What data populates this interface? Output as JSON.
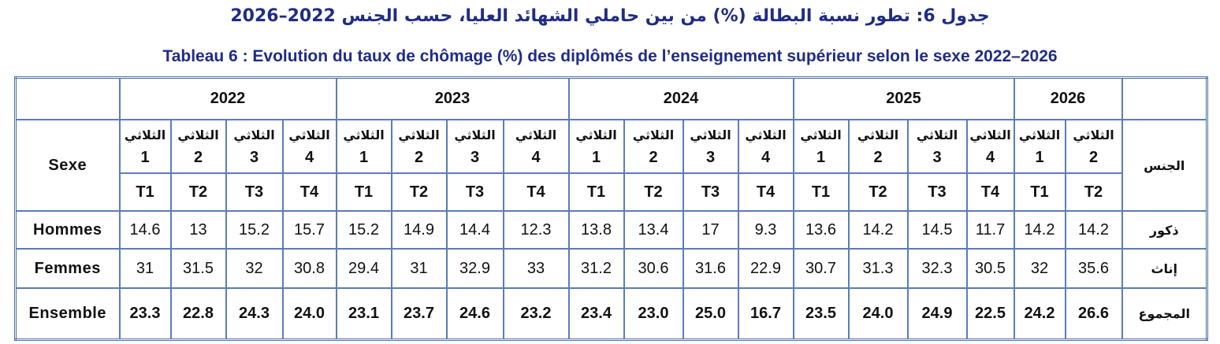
{
  "title_ar": "جدول 6: تطور نسبة البطالة (%) من بين حاملي الشهائد العليا، حسب الجنس 2022–2026",
  "title_fr": "Tableau 6 : Evolution du taux de chômage (%) des diplômés de l’enseignement supérieur selon le sexe 2022–2026",
  "table": {
    "header_fr": "Sexe",
    "header_ar": "الجنس",
    "years": [
      {
        "year": "2022",
        "quarters": [
          {
            "label": "الثلاثي",
            "num": "1",
            "code": "T1"
          },
          {
            "label": "الثلاثي",
            "num": "2",
            "code": "T2"
          },
          {
            "label": "الثلاثي",
            "num": "3",
            "code": "T3"
          },
          {
            "label": "الثلاثي",
            "num": "4",
            "code": "T4"
          }
        ]
      },
      {
        "year": "2023",
        "quarters": [
          {
            "label": "الثلاثي",
            "num": "1",
            "code": "T1"
          },
          {
            "label": "الثلاثي",
            "num": "2",
            "code": "T2"
          },
          {
            "label": "الثلاثي",
            "num": "3",
            "code": "T3"
          },
          {
            "label": "الثلاثي",
            "num": "4",
            "code": "T4"
          }
        ]
      },
      {
        "year": "2024",
        "quarters": [
          {
            "label": "الثلاثي",
            "num": "1",
            "code": "T1"
          },
          {
            "label": "الثلاثي",
            "num": "2",
            "code": "T2"
          },
          {
            "label": "الثلاثي",
            "num": "3",
            "code": "T3"
          },
          {
            "label": "الثلاثي",
            "num": "4",
            "code": "T4"
          }
        ]
      },
      {
        "year": "2025",
        "quarters": [
          {
            "label": "الثلاثي",
            "num": "1",
            "code": "T1"
          },
          {
            "label": "الثلاثي",
            "num": "2",
            "code": "T2"
          },
          {
            "label": "الثلاثي",
            "num": "3",
            "code": "T3"
          },
          {
            "label": "الثلاثي",
            "num": "4",
            "code": "T4"
          }
        ]
      },
      {
        "year": "2026",
        "quarters": [
          {
            "label": "الثلاثي",
            "num": "1",
            "code": "T1"
          },
          {
            "label": "الثلاثي",
            "num": "2",
            "code": "T2"
          }
        ]
      }
    ],
    "rows": [
      {
        "fr": "Hommes",
        "ar": "ذكور",
        "values": [
          "14.6",
          "13",
          "15.2",
          "15.7",
          "15.2",
          "14.9",
          "14.4",
          "12.3",
          "13.8",
          "13.4",
          "17",
          "9.3",
          "13.6",
          "14.2",
          "14.5",
          "11.7",
          "14.2",
          "14.2"
        ]
      },
      {
        "fr": "Femmes",
        "ar": "إناث",
        "values": [
          "31",
          "31.5",
          "32",
          "30.8",
          "29.4",
          "31",
          "32.9",
          "33",
          "31.2",
          "30.6",
          "31.6",
          "22.9",
          "30.7",
          "31.3",
          "32.3",
          "30.5",
          "32",
          "35.6"
        ]
      },
      {
        "fr": "Ensemble",
        "ar": "المجموع",
        "values": [
          "23.3",
          "22.8",
          "24.3",
          "24.0",
          "23.1",
          "23.7",
          "24.6",
          "23.2",
          "23.4",
          "23.0",
          "25.0",
          "16.7",
          "23.5",
          "24.0",
          "24.9",
          "22.5",
          "24.2",
          "26.6"
        ]
      }
    ]
  }
}
